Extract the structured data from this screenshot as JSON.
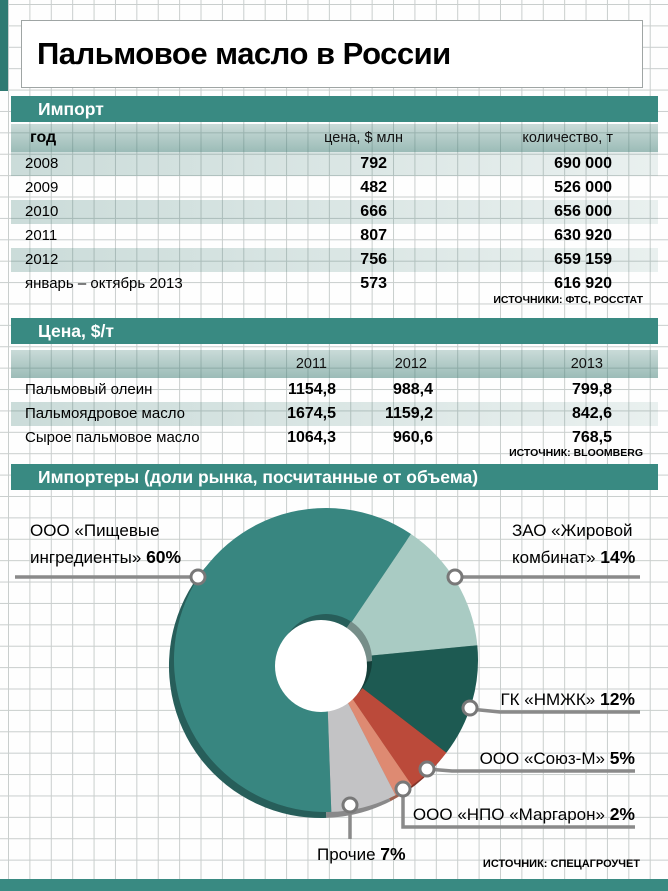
{
  "title": "Пальмовое масло в России",
  "colors": {
    "header_bar": "#398a82",
    "band_base": "#417f76",
    "grid": "#c9cecd",
    "callout_line": "#8a8a8a",
    "corner_strip": "#2f7a72"
  },
  "import_section": {
    "header": "Импорт",
    "columns": {
      "year": "год",
      "price": "цена, $ млн",
      "qty": "количество, т"
    },
    "rows": [
      {
        "year": "2008",
        "price": "792",
        "qty": "690 000"
      },
      {
        "year": "2009",
        "price": "482",
        "qty": "526 000"
      },
      {
        "year": "2010",
        "price": "666",
        "qty": "656 000"
      },
      {
        "year": "2011",
        "price": "807",
        "qty": "630 920"
      },
      {
        "year": "2012",
        "price": "756",
        "qty": "659 159"
      },
      {
        "year": "январь – октябрь 2013",
        "price": "573",
        "qty": "616 920"
      }
    ],
    "source": "ИСТОЧНИКИ: ФТС, РОССТАТ"
  },
  "price_section": {
    "header": "Цена, $/т",
    "columns": [
      "2011",
      "2012",
      "2013"
    ],
    "rows": [
      {
        "label": "Пальмовый олеин",
        "values": [
          "1154,8",
          "988,4",
          "799,8"
        ]
      },
      {
        "label": "Пальмоядровое масло",
        "values": [
          "1674,5",
          "1159,2",
          "842,6"
        ]
      },
      {
        "label": "Сырое пальмовое масло",
        "values": [
          "1064,3",
          "960,6",
          "768,5"
        ]
      }
    ],
    "source": "ИСТОЧНИК: BLOOMBERG"
  },
  "importers_section": {
    "header": "Импортеры (доли рынка, посчитанные от объема)",
    "source": "ИСТОЧНИК: СПЕЦАГРОУЧЕТ"
  },
  "callouts": [
    {
      "line1": "ООО «Пищевые",
      "line2": "ингредиенты»",
      "pct": "60%"
    },
    {
      "line1": "ЗАО «Жировой",
      "line2": "комбинат»",
      "pct": "14%"
    },
    {
      "line1": "ГК «НМЖК»",
      "pct": "12%"
    },
    {
      "line1": "ООО «Союз-М»",
      "pct": "5%"
    },
    {
      "line1": "ООО «НПО «Маргарон»",
      "pct": "2%"
    },
    {
      "line1": "Прочие",
      "pct": "7%"
    }
  ],
  "chart_data": {
    "type": "pie",
    "donut": true,
    "unit": "%",
    "title": "Импортеры (доли рынка, посчитанные от объема)",
    "start_angle_deg": 34,
    "segments": [
      {
        "label": "ЗАО «Жировой комбинат»",
        "value": 14,
        "color": "#a9cbc3"
      },
      {
        "label": "ГК «НМЖК»",
        "value": 12,
        "color": "#1d5a52"
      },
      {
        "label": "ООО «Союз-М»",
        "value": 5,
        "color": "#bb4a3a"
      },
      {
        "label": "ООО «НПО «Маргарон»",
        "value": 2,
        "color": "#de8a72"
      },
      {
        "label": "Прочие",
        "value": 7,
        "color": "#c3c3c5"
      },
      {
        "label": "ООО «Пищевые ингредиенты»",
        "value": 60,
        "color": "#388680"
      }
    ]
  }
}
